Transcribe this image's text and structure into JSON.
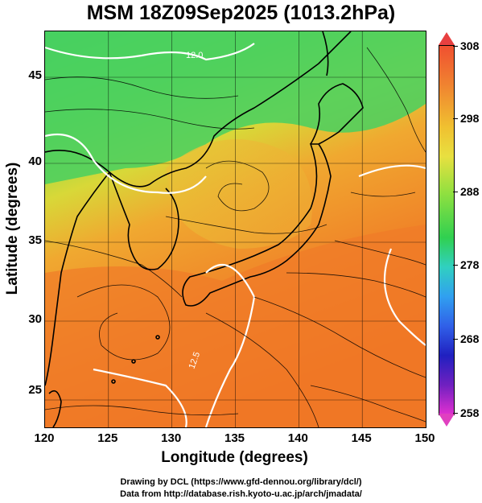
{
  "title": "MSM 18Z09Sep2025 (1013.2hPa)",
  "axes": {
    "xlabel": "Longitude (degrees)",
    "ylabel": "Latitude  (degrees)",
    "x_ticks": [
      "120",
      "125",
      "130",
      "135",
      "140",
      "145",
      "150"
    ],
    "y_ticks": [
      "45",
      "40",
      "35",
      "30",
      "25"
    ],
    "x_range": [
      120,
      150
    ],
    "y_range": [
      22.5,
      47.6
    ]
  },
  "colorbar": {
    "ticks": [
      "308",
      "298",
      "288",
      "278",
      "268",
      "258"
    ],
    "range": [
      258,
      308
    ],
    "unit_hint": "K"
  },
  "contour_labels": [
    "12.0",
    "12.5"
  ],
  "map_features": {
    "background": "temperature field with streamlines",
    "colors": {
      "warm": "#f07828",
      "mid": "#f0c830",
      "cool": "#70d848",
      "green": "#30c848",
      "contour": "#ffffff",
      "coast": "#000000"
    }
  },
  "credits": {
    "line1": "Drawing by DCL (https://www.gfd-dennou.org/library/dcl/)",
    "line2": "Data from http://database.rish.kyoto-u.ac.jp/arch/jmadata/"
  }
}
